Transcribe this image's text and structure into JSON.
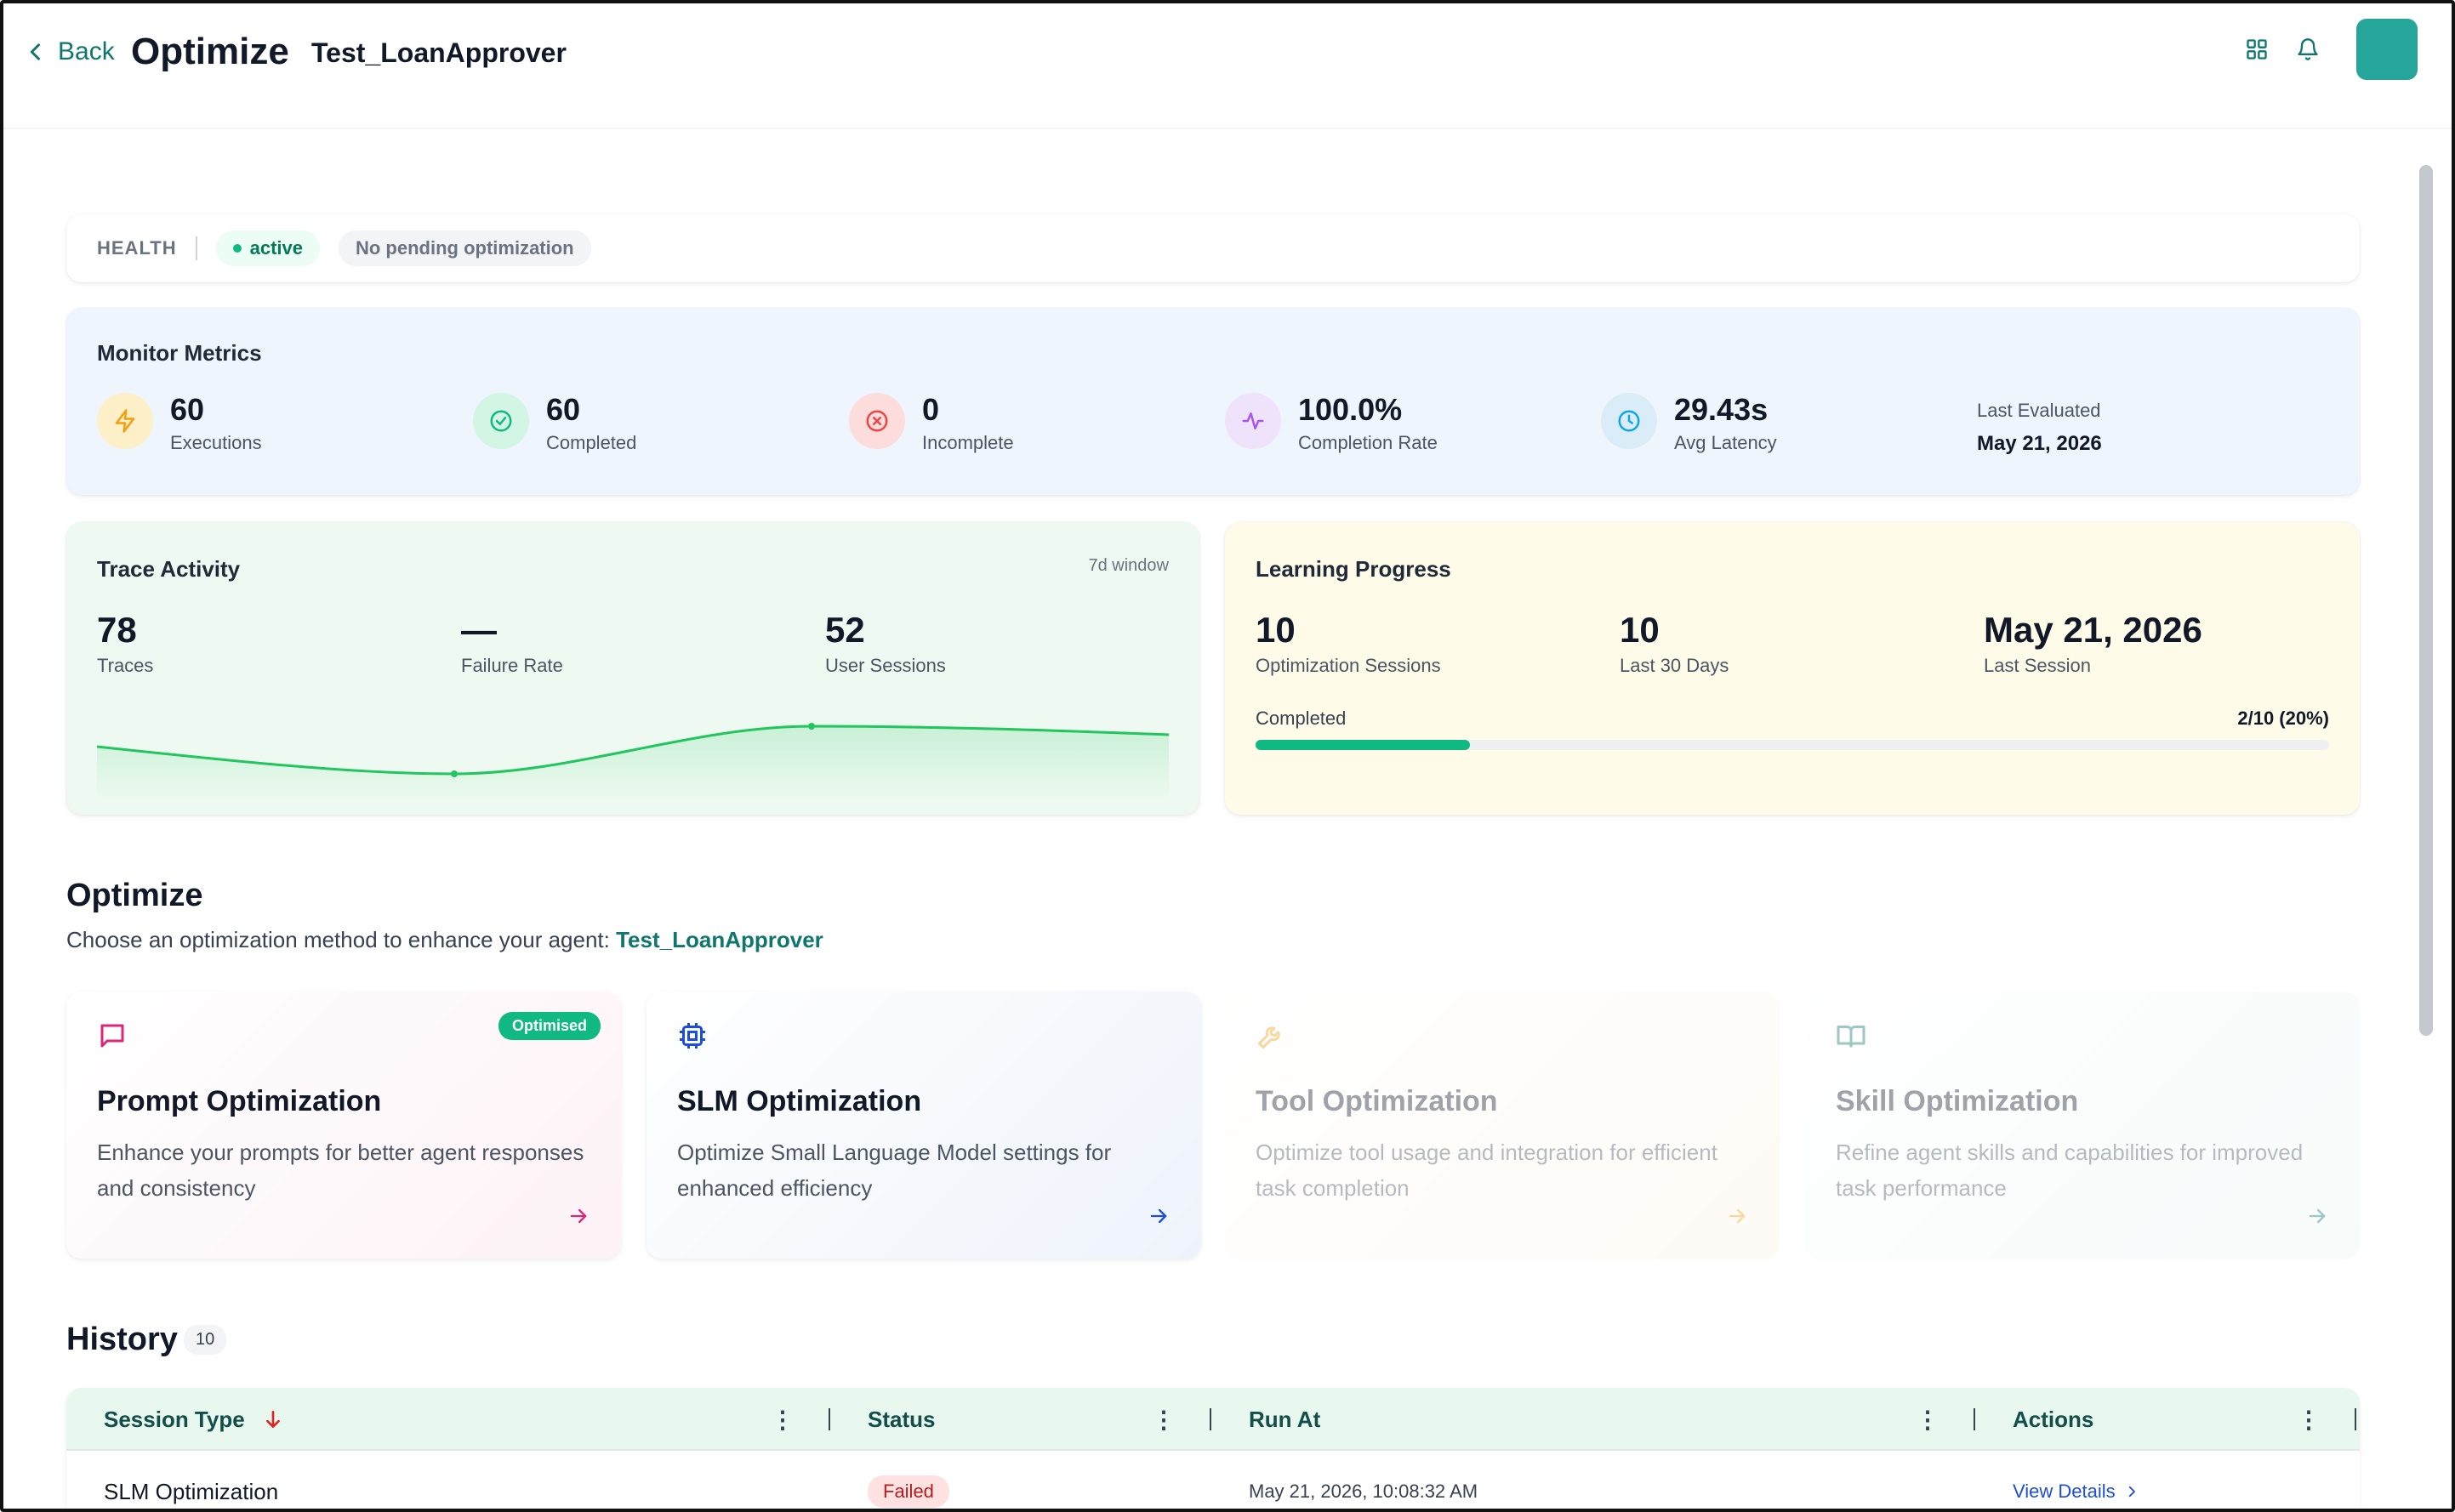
{
  "header": {
    "back_label": "Back",
    "page_title": "Optimize",
    "agent_name": "Test_LoanApprover"
  },
  "health": {
    "label": "HEALTH",
    "status": "active",
    "pending": "No pending optimization"
  },
  "monitor": {
    "title": "Monitor Metrics",
    "metrics": [
      {
        "value": "60",
        "label": "Executions",
        "icon": "lightning-icon",
        "color": "#f59e0b"
      },
      {
        "value": "60",
        "label": "Completed",
        "icon": "check-circle-icon",
        "color": "#10b981"
      },
      {
        "value": "0",
        "label": "Incomplete",
        "icon": "x-circle-icon",
        "color": "#ef4444"
      },
      {
        "value": "100.0%",
        "label": "Completion Rate",
        "icon": "activity-icon",
        "color": "#a855f7"
      },
      {
        "value": "29.43s",
        "label": "Avg Latency",
        "icon": "clock-icon",
        "color": "#0ea5e9"
      }
    ],
    "last_evaluated_label": "Last Evaluated",
    "last_evaluated_value": "May 21, 2026"
  },
  "trace": {
    "title": "Trace Activity",
    "window": "7d window",
    "stats": [
      {
        "value": "78",
        "label": "Traces"
      },
      {
        "value": "—",
        "label": "Failure Rate"
      },
      {
        "value": "52",
        "label": "User Sessions"
      }
    ]
  },
  "learning": {
    "title": "Learning Progress",
    "stats": [
      {
        "value": "10",
        "label": "Optimization Sessions"
      },
      {
        "value": "10",
        "label": "Last 30 Days"
      },
      {
        "value": "May 21, 2026",
        "label": "Last Session"
      }
    ],
    "progress_label": "Completed",
    "progress_text": "2/10 (20%)",
    "progress_fraction": 0.2
  },
  "optimize": {
    "title": "Optimize",
    "subtitle": "Choose an optimization method to enhance your agent:",
    "agent": "Test_LoanApprover",
    "cards": [
      {
        "title": "Prompt Optimization",
        "desc": "Enhance your prompts for better agent responses and consistency",
        "badge": "Optimised",
        "icon": "message-square-icon",
        "accent": "#db2777"
      },
      {
        "title": "SLM Optimization",
        "desc": "Optimize Small Language Model settings for enhanced efficiency",
        "icon": "cpu-chip-icon",
        "accent": "#1d4ed8"
      },
      {
        "title": "Tool Optimization",
        "desc": "Optimize tool usage and integration for efficient task completion",
        "icon": "wrench-icon",
        "accent": "#f59e0b"
      },
      {
        "title": "Skill Optimization",
        "desc": "Refine agent skills and capabilities for improved task performance",
        "icon": "book-open-icon",
        "accent": "#0f766e"
      }
    ]
  },
  "history": {
    "title": "History",
    "count": "10",
    "columns": [
      "Session Type",
      "Status",
      "Run At",
      "Actions"
    ],
    "rows": [
      {
        "session_type": "SLM Optimization",
        "status": "Failed",
        "run_at": "May 21, 2026, 10:08:32 AM",
        "action": "View Details"
      }
    ]
  }
}
